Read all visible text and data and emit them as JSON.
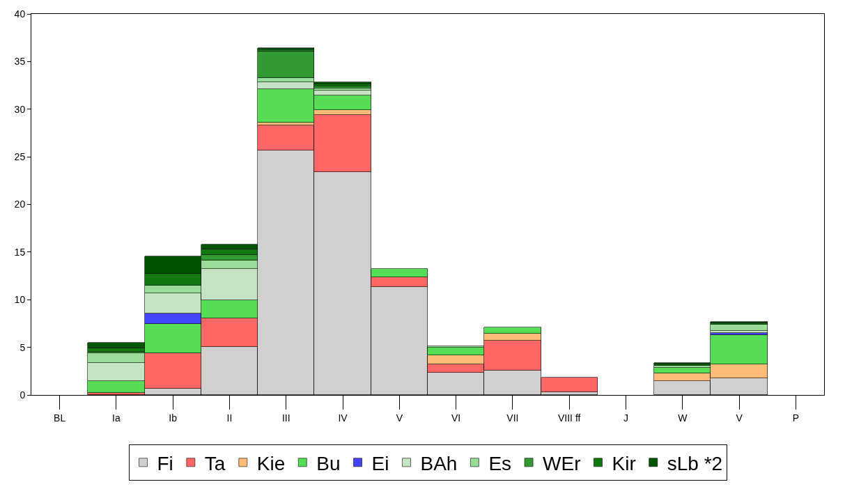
{
  "chart_data": {
    "type": "bar",
    "stacked": true,
    "categories": [
      "BL",
      "Ia",
      "Ib",
      "II",
      "III",
      "IV",
      "V",
      "VI",
      "VII",
      "VIII ff",
      "J",
      "W",
      "V",
      "P"
    ],
    "ylim": [
      0,
      40
    ],
    "yticks": [
      0,
      5,
      10,
      15,
      20,
      25,
      30,
      35,
      40
    ],
    "grid": false,
    "legend": "bottom",
    "series": [
      {
        "name": "Fi",
        "color": "#d0d0d0",
        "values": [
          null,
          null,
          0.66,
          5.06,
          25.67,
          23.43,
          11.3,
          2.34,
          2.58,
          0.26,
          null,
          1.44,
          1.75,
          null
        ]
      },
      {
        "name": "Ta",
        "color": "#ff6666",
        "values": [
          null,
          0.2,
          3.74,
          3.0,
          2.65,
          5.97,
          1.09,
          0.87,
          3.12,
          1.54,
          null,
          null,
          null,
          null
        ]
      },
      {
        "name": "Kie",
        "color": "#ffbb77",
        "values": [
          null,
          null,
          null,
          null,
          0.24,
          0.53,
          null,
          0.95,
          0.7,
          null,
          null,
          0.83,
          1.46,
          null
        ]
      },
      {
        "name": "Bu",
        "color": "#55dd55",
        "values": [
          null,
          1.25,
          3.07,
          1.89,
          3.57,
          1.54,
          0.81,
          0.83,
          0.7,
          null,
          null,
          0.59,
          3.08,
          null
        ]
      },
      {
        "name": "Ei",
        "color": "#4444ff",
        "values": [
          null,
          null,
          1.06,
          null,
          null,
          null,
          null,
          null,
          null,
          null,
          null,
          null,
          0.23,
          null
        ]
      },
      {
        "name": "BAh",
        "color": "#c4e4c4",
        "values": [
          null,
          1.95,
          2.13,
          3.31,
          0.67,
          0.47,
          null,
          null,
          null,
          null,
          null,
          null,
          0.24,
          null
        ]
      },
      {
        "name": "Es",
        "color": "#99dd99",
        "values": [
          null,
          1.02,
          0.83,
          0.83,
          0.44,
          0.23,
          null,
          0.11,
          null,
          null,
          null,
          0.2,
          0.65,
          null
        ]
      },
      {
        "name": "WEr",
        "color": "#339933",
        "values": [
          null,
          0.1,
          null,
          0.59,
          2.84,
          0.23,
          null,
          null,
          null,
          null,
          null,
          null,
          null,
          null
        ]
      },
      {
        "name": "Kir",
        "color": "#117711",
        "values": [
          null,
          0.37,
          1.23,
          0.59,
          0.22,
          0.2,
          null,
          null,
          null,
          null,
          null,
          0.15,
          0.15,
          null
        ]
      },
      {
        "name": "sLb *2",
        "color": "#005500",
        "values": [
          null,
          0.6,
          1.8,
          0.53,
          0.1,
          0.2,
          null,
          null,
          null,
          null,
          null,
          0.17,
          0.15,
          null
        ]
      }
    ]
  }
}
